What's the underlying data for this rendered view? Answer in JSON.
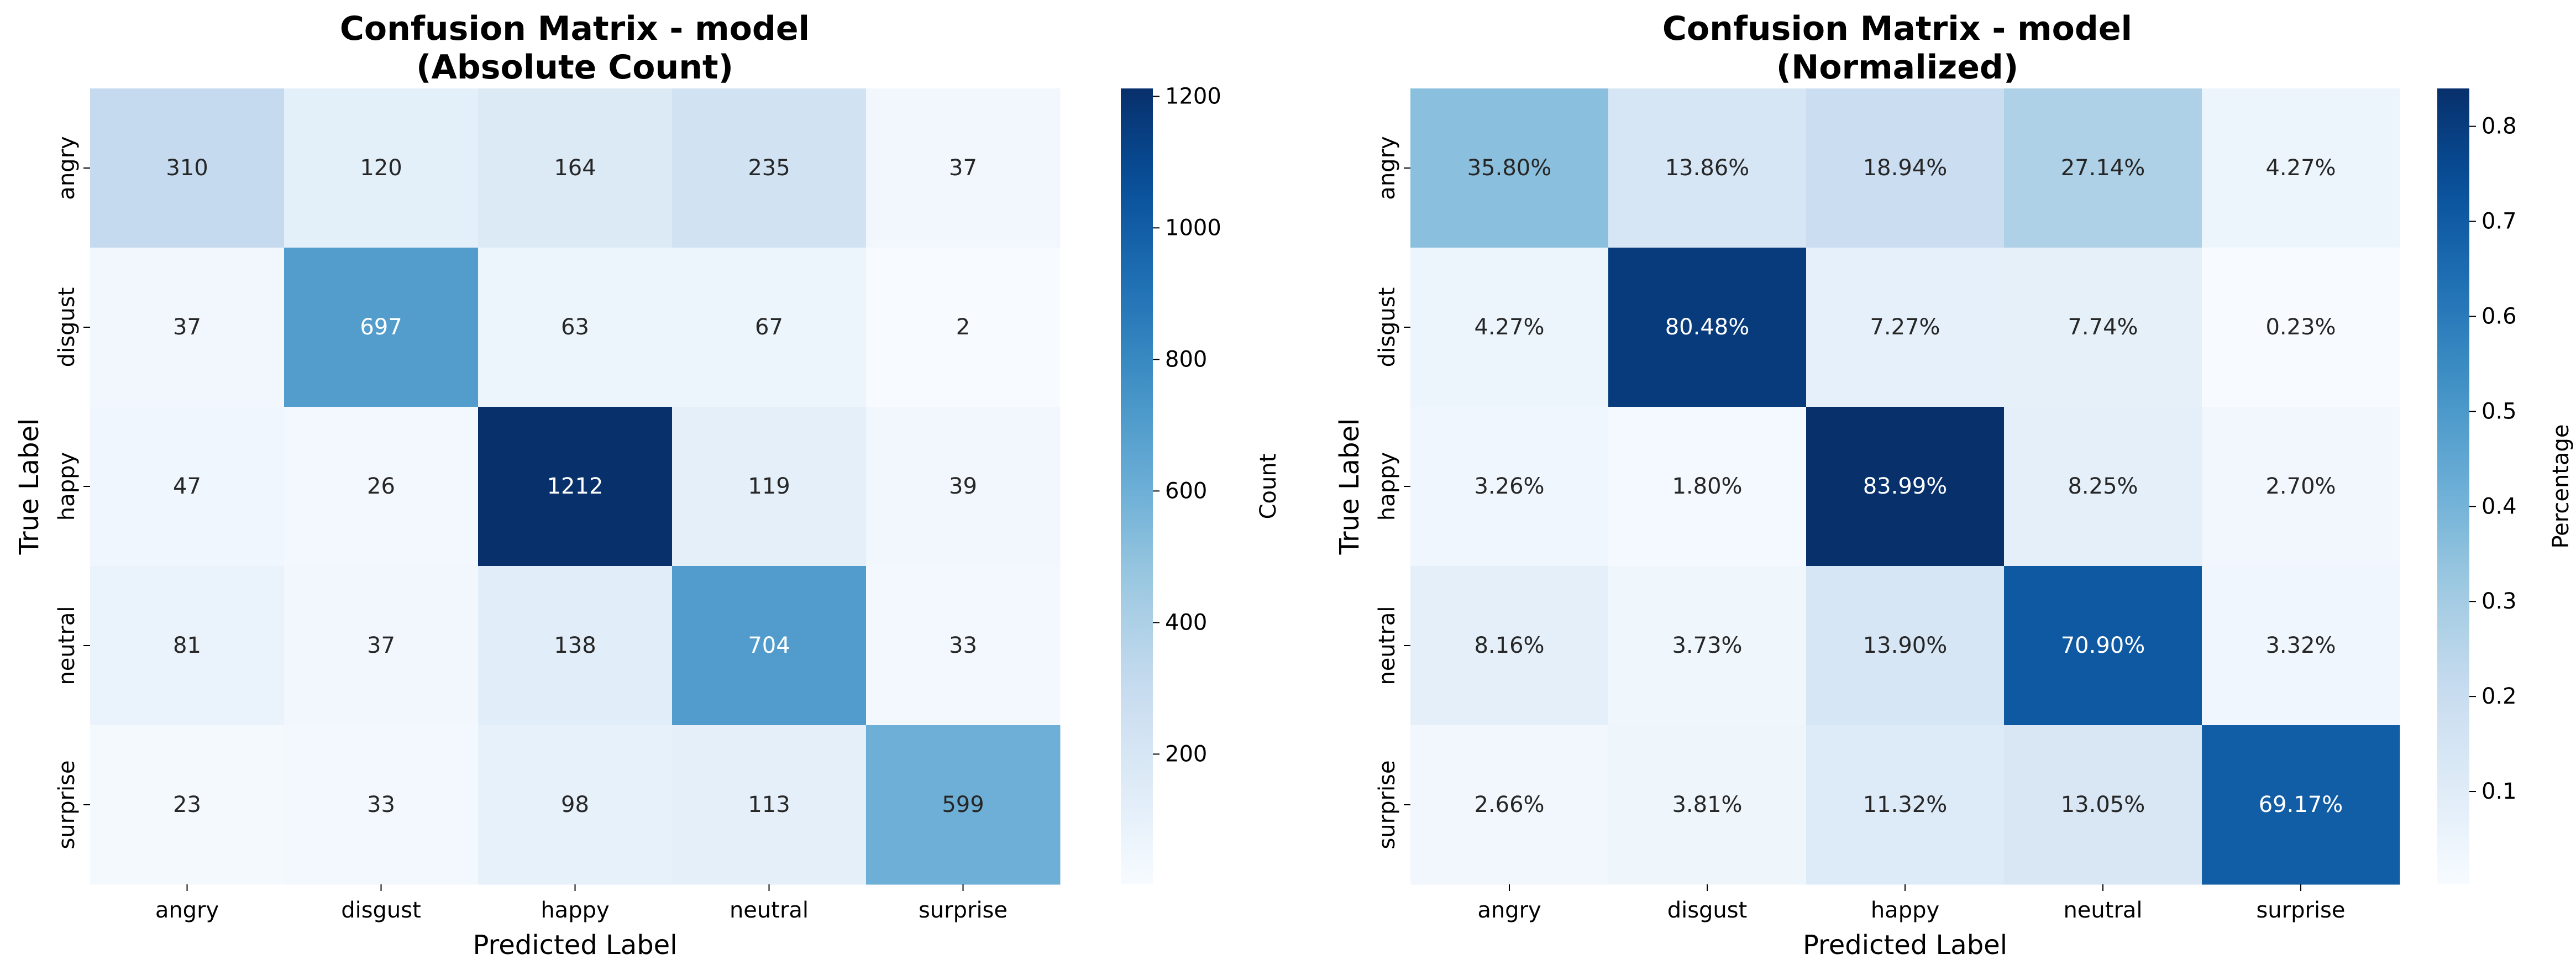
{
  "chart_data": [
    {
      "type": "heatmap",
      "title_line1": "Confusion Matrix - model",
      "title_line2": "(Absolute Count)",
      "xlabel": "Predicted Label",
      "ylabel": "True Label",
      "x_categories": [
        "angry",
        "disgust",
        "happy",
        "neutral",
        "surprise"
      ],
      "y_categories": [
        "angry",
        "disgust",
        "happy",
        "neutral",
        "surprise"
      ],
      "values": [
        [
          310,
          120,
          164,
          235,
          37
        ],
        [
          37,
          697,
          63,
          67,
          2
        ],
        [
          47,
          26,
          1212,
          119,
          39
        ],
        [
          81,
          37,
          138,
          704,
          33
        ],
        [
          23,
          33,
          98,
          113,
          599
        ]
      ],
      "cell_labels": [
        [
          "310",
          "120",
          "164",
          "235",
          "37"
        ],
        [
          "37",
          "697",
          "63",
          "67",
          "2"
        ],
        [
          "47",
          "26",
          "1212",
          "119",
          "39"
        ],
        [
          "81",
          "37",
          "138",
          "704",
          "33"
        ],
        [
          "23",
          "33",
          "98",
          "113",
          "599"
        ]
      ],
      "colorbar": {
        "label": "Count",
        "vmin": 2,
        "vmax": 1212,
        "ticks": [
          200,
          400,
          600,
          800,
          1000,
          1200
        ],
        "tick_labels": [
          "200",
          "400",
          "600",
          "800",
          "1000",
          "1200"
        ]
      },
      "colormap": "Blues"
    },
    {
      "type": "heatmap",
      "title_line1": "Confusion Matrix - model",
      "title_line2": "(Normalized)",
      "xlabel": "Predicted Label",
      "ylabel": "True Label",
      "x_categories": [
        "angry",
        "disgust",
        "happy",
        "neutral",
        "surprise"
      ],
      "y_categories": [
        "angry",
        "disgust",
        "happy",
        "neutral",
        "surprise"
      ],
      "values": [
        [
          0.358,
          0.1386,
          0.1894,
          0.2714,
          0.0427
        ],
        [
          0.0427,
          0.8048,
          0.0727,
          0.0774,
          0.0023
        ],
        [
          0.0326,
          0.018,
          0.8399,
          0.0825,
          0.027
        ],
        [
          0.0816,
          0.0373,
          0.139,
          0.709,
          0.0332
        ],
        [
          0.0266,
          0.0381,
          0.1132,
          0.1305,
          0.6917
        ]
      ],
      "cell_labels": [
        [
          "35.80%",
          "13.86%",
          "18.94%",
          "27.14%",
          "4.27%"
        ],
        [
          "4.27%",
          "80.48%",
          "7.27%",
          "7.74%",
          "0.23%"
        ],
        [
          "3.26%",
          "1.80%",
          "83.99%",
          "8.25%",
          "2.70%"
        ],
        [
          "8.16%",
          "3.73%",
          "13.90%",
          "70.90%",
          "3.32%"
        ],
        [
          "2.66%",
          "3.81%",
          "11.32%",
          "13.05%",
          "69.17%"
        ]
      ],
      "colorbar": {
        "label": "Percentage",
        "vmin": 0.0023,
        "vmax": 0.8399,
        "ticks": [
          0.1,
          0.2,
          0.3,
          0.4,
          0.5,
          0.6,
          0.7,
          0.8
        ],
        "tick_labels": [
          "0.1",
          "0.2",
          "0.3",
          "0.4",
          "0.5",
          "0.6",
          "0.7",
          "0.8"
        ]
      },
      "colormap": "Blues"
    }
  ]
}
